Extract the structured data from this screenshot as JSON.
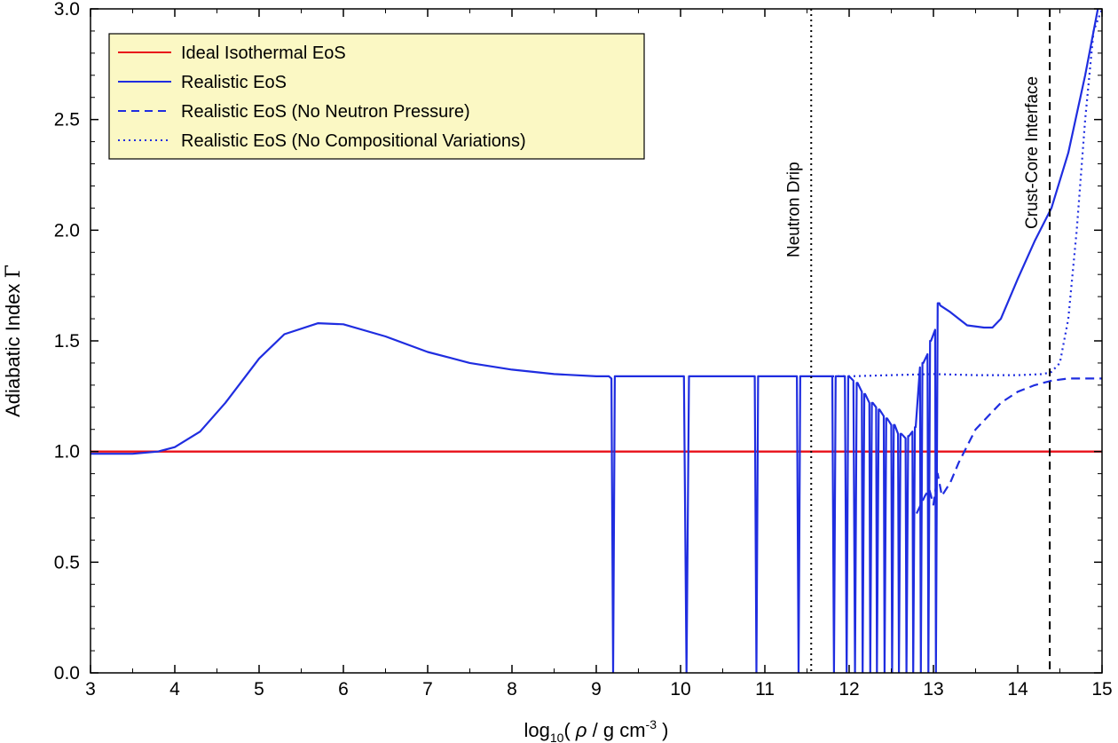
{
  "chart_data": {
    "type": "line",
    "xlabel_parts": {
      "pre": "log",
      "sub": "10",
      "mid": "( ",
      "rho": "ρ",
      "post1": " / g cm",
      "sup": "-3",
      "post2": " )"
    },
    "ylabel_parts": {
      "text": "Adiabatic Index ",
      "symbol": "Γ"
    },
    "xlim": [
      3,
      15
    ],
    "ylim": [
      0,
      3
    ],
    "xticks": [
      3,
      4,
      5,
      6,
      7,
      8,
      9,
      10,
      11,
      12,
      13,
      14,
      15
    ],
    "xtick_labels": [
      "3",
      "4",
      "5",
      "6",
      "7",
      "8",
      "9",
      "10",
      "11",
      "12",
      "13",
      "14",
      "15"
    ],
    "yticks": [
      0,
      0.5,
      1,
      1.5,
      2,
      2.5,
      3
    ],
    "ytick_labels": [
      "0.0",
      "0.5",
      "1.0",
      "1.5",
      "2.0",
      "2.5",
      "3.0"
    ],
    "grid": false,
    "legend": {
      "placement": "top-left",
      "background": "#fbf8c4",
      "entries": [
        {
          "label": "Ideal Isothermal EoS",
          "color": "#e8101a",
          "dash": "solid"
        },
        {
          "label": "Realistic EoS",
          "color": "#1f2de0",
          "dash": "solid"
        },
        {
          "label": "Realistic EoS (No Neutron Pressure)",
          "color": "#1f2de0",
          "dash": "dashed"
        },
        {
          "label": "Realistic EoS (No Compositional Variations)",
          "color": "#1f2de0",
          "dash": "dotted"
        }
      ]
    },
    "vlines": [
      {
        "x": 11.55,
        "label": "Neutron Drip",
        "style": "dotted",
        "color": "#000000"
      },
      {
        "x": 14.38,
        "label": "Crust-Core Interface",
        "style": "dashed",
        "color": "#000000"
      }
    ],
    "series": [
      {
        "name": "Ideal Isothermal EoS",
        "color": "#e8101a",
        "dash": "solid",
        "x": [
          3,
          15
        ],
        "y": [
          1.0,
          1.0
        ]
      },
      {
        "name": "Realistic EoS",
        "color": "#1f2de0",
        "dash": "solid",
        "x": [
          3.0,
          3.5,
          3.8,
          4.0,
          4.3,
          4.6,
          5.0,
          5.3,
          5.7,
          6.0,
          6.5,
          7.0,
          7.5,
          8.0,
          8.5,
          9.0,
          9.15,
          9.18,
          9.2,
          9.22,
          9.25,
          10.04,
          10.07,
          10.1,
          10.13,
          10.88,
          10.9,
          10.92,
          10.95,
          11.38,
          11.4,
          11.42,
          11.44,
          11.8,
          11.82,
          11.84,
          11.87,
          11.95,
          11.97,
          11.99,
          12.0,
          12.05,
          12.07,
          12.09,
          12.1,
          12.15,
          12.16,
          12.18,
          12.19,
          12.24,
          12.25,
          12.27,
          12.28,
          12.32,
          12.33,
          12.35,
          12.36,
          12.41,
          12.42,
          12.44,
          12.45,
          12.5,
          12.51,
          12.53,
          12.54,
          12.58,
          12.59,
          12.61,
          12.62,
          12.67,
          12.68,
          12.7,
          12.71,
          12.75,
          12.76,
          12.78,
          12.79,
          12.84,
          12.85,
          12.87,
          12.88,
          12.93,
          12.94,
          12.96,
          12.97,
          13.02,
          13.03,
          13.05,
          13.07,
          13.08,
          13.2,
          13.4,
          13.6,
          13.7,
          13.8,
          14.0,
          14.2,
          14.4,
          14.6,
          14.8,
          14.95
        ],
        "y": [
          0.99,
          0.99,
          1.0,
          1.02,
          1.09,
          1.22,
          1.42,
          1.53,
          1.58,
          1.575,
          1.52,
          1.45,
          1.4,
          1.37,
          1.35,
          1.34,
          1.34,
          1.33,
          0.0,
          1.34,
          1.34,
          1.34,
          0.0,
          1.34,
          1.34,
          1.34,
          0.0,
          1.34,
          1.34,
          1.34,
          0.0,
          1.34,
          1.34,
          1.34,
          0.0,
          1.34,
          1.34,
          1.34,
          0.0,
          1.34,
          1.34,
          1.32,
          0.0,
          1.31,
          1.31,
          1.27,
          0.0,
          1.26,
          1.26,
          1.22,
          0.0,
          1.22,
          1.22,
          1.2,
          0.0,
          1.19,
          1.19,
          1.16,
          0.0,
          1.15,
          1.15,
          1.12,
          0.0,
          1.12,
          1.12,
          1.08,
          0.0,
          1.08,
          1.08,
          1.06,
          0.0,
          1.07,
          1.07,
          1.09,
          0.0,
          1.11,
          1.11,
          1.38,
          0.0,
          1.4,
          1.4,
          1.44,
          0.0,
          1.5,
          1.5,
          1.55,
          0.0,
          1.67,
          1.67,
          1.66,
          1.63,
          1.57,
          1.56,
          1.56,
          1.6,
          1.78,
          1.95,
          2.1,
          2.35,
          2.7,
          3.0
        ]
      },
      {
        "name": "Realistic EoS (No Neutron Pressure)",
        "color": "#1f2de0",
        "dash": "dashed",
        "x": [
          12.8,
          12.9,
          12.95,
          13.0,
          13.05,
          13.1,
          13.2,
          13.3,
          13.5,
          13.8,
          14.0,
          14.2,
          14.4,
          14.6,
          14.8,
          15.0
        ],
        "y": [
          0.72,
          0.8,
          0.83,
          0.76,
          0.9,
          0.8,
          0.86,
          0.95,
          1.1,
          1.22,
          1.27,
          1.3,
          1.32,
          1.33,
          1.33,
          1.33
        ]
      },
      {
        "name": "Realistic EoS (No Compositional Variations)",
        "color": "#1f2de0",
        "dash": "dotted",
        "x": [
          11.8,
          12.0,
          12.5,
          13.0,
          13.5,
          14.0,
          14.3,
          14.4,
          14.5,
          14.6,
          14.7,
          14.8,
          14.9,
          15.0
        ],
        "y": [
          1.34,
          1.34,
          1.345,
          1.35,
          1.345,
          1.345,
          1.35,
          1.36,
          1.4,
          1.6,
          2.0,
          2.5,
          2.9,
          3.0
        ]
      }
    ]
  }
}
